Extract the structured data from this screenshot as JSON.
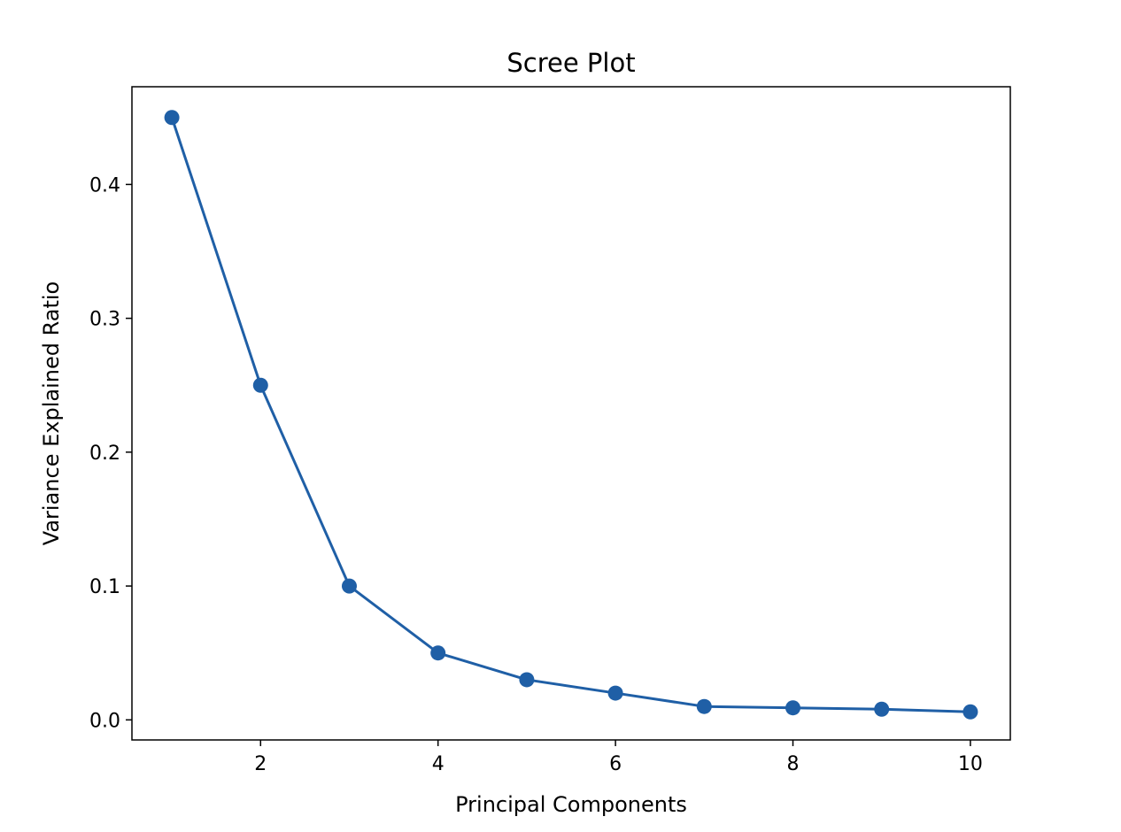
{
  "colors": {
    "series": "#1f5fa6"
  },
  "chart_data": {
    "type": "line",
    "title": "Scree Plot",
    "xlabel": "Principal Components",
    "ylabel": "Variance Explained Ratio",
    "xlim": [
      0.55,
      10.45
    ],
    "ylim": [
      -0.015,
      0.473
    ],
    "xticks": [
      2,
      4,
      6,
      8,
      10
    ],
    "xtick_labels": [
      "2",
      "4",
      "6",
      "8",
      "10"
    ],
    "yticks": [
      0.0,
      0.1,
      0.2,
      0.3,
      0.4
    ],
    "ytick_labels": [
      "0.0",
      "0.1",
      "0.2",
      "0.3",
      "0.4"
    ],
    "grid": false,
    "x": [
      1,
      2,
      3,
      4,
      5,
      6,
      7,
      8,
      9,
      10
    ],
    "series": [
      {
        "values": [
          0.45,
          0.25,
          0.1,
          0.05,
          0.03,
          0.02,
          0.01,
          0.009,
          0.008,
          0.006
        ]
      }
    ]
  }
}
